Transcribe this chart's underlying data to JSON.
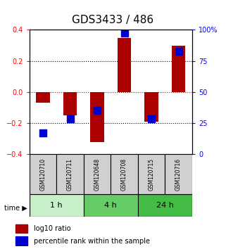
{
  "title": "GDS3433 / 486",
  "samples": [
    "GSM120710",
    "GSM120711",
    "GSM120648",
    "GSM120708",
    "GSM120715",
    "GSM120716"
  ],
  "log10_ratio": [
    -0.07,
    -0.15,
    -0.32,
    0.35,
    -0.19,
    0.3
  ],
  "percentile_rank_pct": [
    17.5,
    28.5,
    35.5,
    97.5,
    28.5,
    82.5
  ],
  "time_groups": [
    {
      "label": "1 h",
      "start": 0,
      "end": 1,
      "color": "#c8f0c8"
    },
    {
      "label": "4 h",
      "start": 2,
      "end": 3,
      "color": "#66cc66"
    },
    {
      "label": "24 h",
      "start": 4,
      "end": 5,
      "color": "#44bb44"
    }
  ],
  "ylim": [
    -0.4,
    0.4
  ],
  "yticks_left": [
    -0.4,
    -0.2,
    0.0,
    0.2,
    0.4
  ],
  "yticks_right": [
    0,
    25,
    50,
    75,
    100
  ],
  "bar_color": "#aa0000",
  "dot_color": "#0000cc",
  "bar_width": 0.5,
  "dot_size": 60,
  "plot_bg_color": "#ffffff",
  "zero_line_color": "#cc0000",
  "legend_red_label": "log10 ratio",
  "legend_blue_label": "percentile rank within the sample",
  "sample_box_color": "#d0d0d0"
}
